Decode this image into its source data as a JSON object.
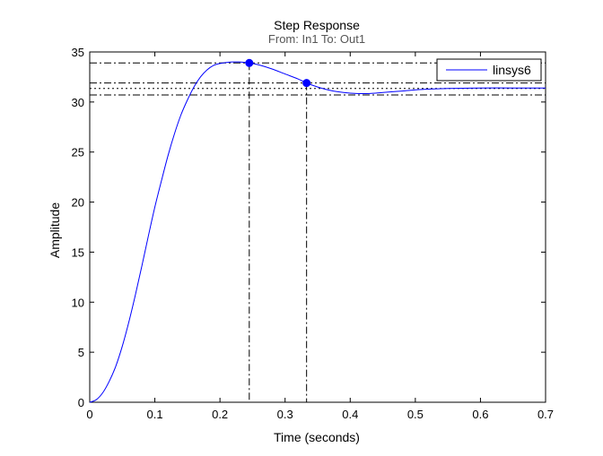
{
  "chart_data": {
    "type": "line",
    "title": "Step Response",
    "subtitle": "From: In1  To: Out1",
    "xlabel": "Time (seconds)",
    "ylabel": "Amplitude",
    "xlim": [
      0,
      0.7
    ],
    "ylim": [
      0,
      35
    ],
    "xticks": [
      0,
      0.1,
      0.2,
      0.3,
      0.4,
      0.5,
      0.6,
      0.7
    ],
    "xtick_labels": [
      "0",
      "0.1",
      "0.2",
      "0.3",
      "0.4",
      "0.5",
      "0.6",
      "0.7"
    ],
    "yticks": [
      0,
      5,
      10,
      15,
      20,
      25,
      30,
      35
    ],
    "ytick_labels": [
      "0",
      "5",
      "10",
      "15",
      "20",
      "25",
      "30",
      "35"
    ],
    "grid": false,
    "legend": {
      "position": "top-right",
      "entries": [
        "linsys6"
      ]
    },
    "series": [
      {
        "name": "linsys6",
        "color": "#0000ff",
        "x": [
          0,
          0.01,
          0.02,
          0.03,
          0.04,
          0.05,
          0.06,
          0.07,
          0.08,
          0.09,
          0.1,
          0.11,
          0.12,
          0.13,
          0.14,
          0.15,
          0.16,
          0.17,
          0.18,
          0.19,
          0.2,
          0.21,
          0.22,
          0.23,
          0.245,
          0.26,
          0.28,
          0.3,
          0.32,
          0.333,
          0.35,
          0.37,
          0.39,
          0.41,
          0.43,
          0.45,
          0.48,
          0.51,
          0.55,
          0.6,
          0.65,
          0.7
        ],
        "y": [
          0,
          0.25,
          0.95,
          2.1,
          3.6,
          5.6,
          8.0,
          10.7,
          13.6,
          16.6,
          19.5,
          22.1,
          24.6,
          26.8,
          28.7,
          30.2,
          31.5,
          32.5,
          33.2,
          33.65,
          33.85,
          33.95,
          34.0,
          34.0,
          33.9,
          33.7,
          33.3,
          32.8,
          32.3,
          31.9,
          31.5,
          31.15,
          30.95,
          30.85,
          30.85,
          30.95,
          31.1,
          31.25,
          31.35,
          31.4,
          31.4,
          31.4
        ]
      }
    ],
    "markers": [
      {
        "x": 0.245,
        "y": 33.9
      },
      {
        "x": 0.333,
        "y": 31.9
      }
    ],
    "reference_lines": {
      "horizontal": [
        33.9,
        31.9,
        30.7
      ],
      "vertical": [
        0.245,
        0.333
      ],
      "steady_state": 31.35
    }
  }
}
